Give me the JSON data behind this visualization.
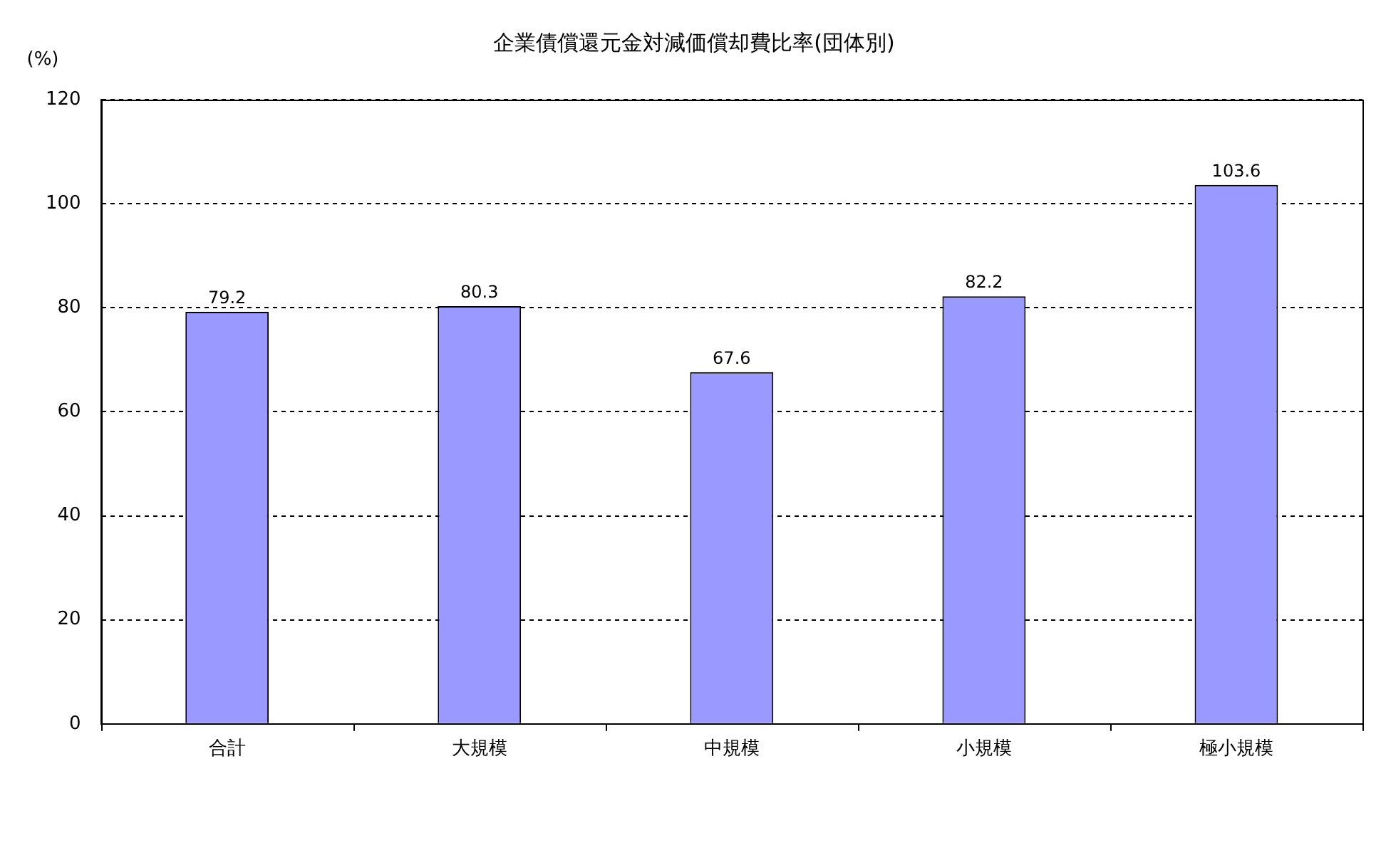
{
  "chart_data": {
    "type": "bar",
    "title": "企業債償還元金対減価償却費比率(団体別)",
    "ylabel": "(%)",
    "categories": [
      "合計",
      "大規模",
      "中規模",
      "小規模",
      "極小規模"
    ],
    "values": [
      79.2,
      80.3,
      67.6,
      82.2,
      103.6
    ],
    "color": "#9999ff",
    "ylim": [
      0,
      120
    ],
    "yticks": [
      0,
      20,
      40,
      60,
      80,
      100,
      120
    ],
    "grid": "y",
    "data_labels": true,
    "legend": false
  }
}
